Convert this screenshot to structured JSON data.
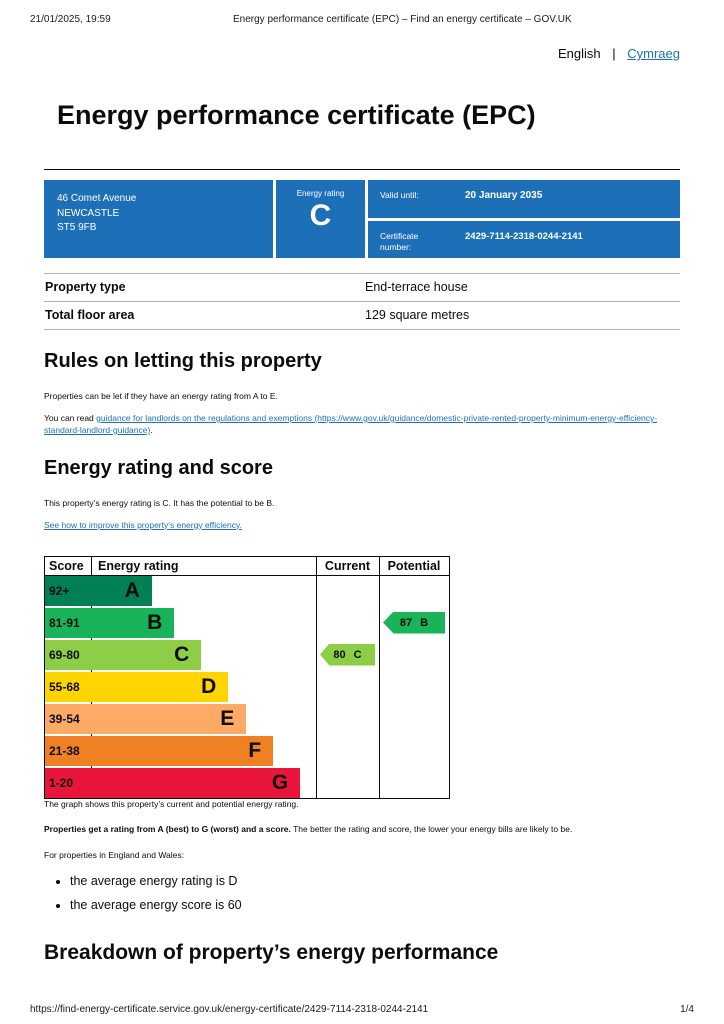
{
  "print_header": {
    "datetime": "21/01/2025, 19:59",
    "doc_title": "Energy performance certificate (EPC) – Find an energy certificate – GOV.UK"
  },
  "language": {
    "current": "English",
    "separator": "|",
    "link": "Cymraeg"
  },
  "page_title": "Energy performance certificate (EPC)",
  "banner": {
    "address_lines": [
      "46 Comet Avenue",
      "NEWCASTLE",
      "ST5 9FB"
    ],
    "rating_label": "Energy rating",
    "rating_value": "C",
    "valid_until_label": "Valid until:",
    "valid_until_value": "20 January 2035",
    "certificate_label": "Certificate number:",
    "certificate_value": "2429-7114-2318-0244-2141"
  },
  "property_facts": [
    {
      "label": "Property type",
      "value": "End-terrace house"
    },
    {
      "label": "Total floor area",
      "value": "129 square metres"
    }
  ],
  "rules_section": {
    "heading": "Rules on letting this property",
    "paragraph1": "Properties can be let if they have an energy rating from A to E.",
    "paragraph2_prefix": "You can read ",
    "paragraph2_link": "guidance for landlords on the regulations and exemptions (https://www.gov.uk/guidance/domestic-private-rented-property-minimum-energy-efficiency-standard-landlord-guidance)",
    "paragraph2_suffix": "."
  },
  "rating_section": {
    "heading": "Energy rating and score",
    "paragraph": "This property’s energy rating is C. It has the potential to be B.",
    "improve_link": "See how to improve this property’s energy efficiency."
  },
  "chart_data": {
    "type": "bar",
    "subtype": "epc-rating-bands",
    "headers": [
      "Score",
      "Energy rating",
      "Current",
      "Potential"
    ],
    "bands": [
      {
        "score": "92+",
        "letter": "A",
        "color": "#008054",
        "width_pct": 27
      },
      {
        "score": "81-91",
        "letter": "B",
        "color": "#19b459",
        "width_pct": 37
      },
      {
        "score": "69-80",
        "letter": "C",
        "color": "#8dce46",
        "width_pct": 49
      },
      {
        "score": "55-68",
        "letter": "D",
        "color": "#ffd500",
        "width_pct": 61
      },
      {
        "score": "39-54",
        "letter": "E",
        "color": "#fcaa65",
        "width_pct": 69
      },
      {
        "score": "21-38",
        "letter": "F",
        "color": "#ef8023",
        "width_pct": 81
      },
      {
        "score": "1-20",
        "letter": "G",
        "color": "#e9153b",
        "width_pct": 93
      }
    ],
    "current": {
      "score": "80",
      "letter": "C"
    },
    "potential": {
      "score": "87",
      "letter": "B"
    }
  },
  "chart_notes": {
    "caption": "The graph shows this property’s current and potential energy rating.",
    "explain_bold": "Properties get a rating from A (best) to G (worst) and a score.",
    "explain_rest": "The better the rating and score, the lower your energy bills are likely to be.",
    "regions_intro": "For properties in England and Wales:",
    "bullets": [
      "the average energy rating is D",
      "the average energy score is 60"
    ]
  },
  "breakdown_heading": "Breakdown of property’s energy performance",
  "print_footer": {
    "url": "https://find-energy-certificate.service.gov.uk/energy-certificate/2429-7114-2318-0244-2141",
    "page_indicator": "1/4"
  },
  "colors": {
    "govuk_blue": "#1d70b8",
    "link_blue": "#1d70b8"
  }
}
